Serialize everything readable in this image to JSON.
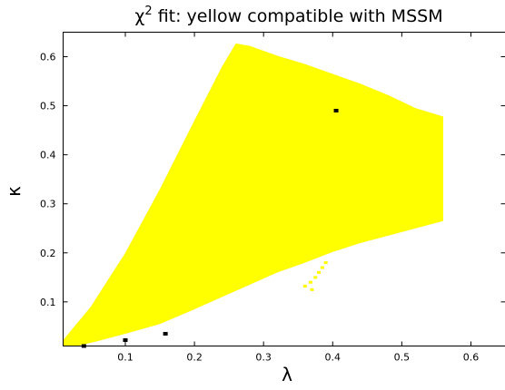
{
  "chart_data": {
    "type": "scatter",
    "title": "χ² fit: yellow compatible with MSSM",
    "title_base": "χ",
    "title_sup": "2",
    "title_rest": " fit: yellow compatible with MSSM",
    "xlabel": "λ",
    "ylabel": "κ",
    "xlim": [
      0.01,
      0.65
    ],
    "ylim": [
      0.01,
      0.65
    ],
    "xticks": [
      "0.1",
      "0.2",
      "0.3",
      "0.4",
      "0.5",
      "0.6"
    ],
    "xtick_values": [
      0.1,
      0.2,
      0.3,
      0.4,
      0.5,
      0.6
    ],
    "yticks": [
      "0.1",
      "0.2",
      "0.3",
      "0.4",
      "0.5",
      "0.6"
    ],
    "ytick_values": [
      0.1,
      0.2,
      0.3,
      0.4,
      0.5,
      0.6
    ],
    "grid": false,
    "fill_color": "#ffff00",
    "marker_color": "#000000",
    "region_boundary": [
      [
        0.01,
        0.01
      ],
      [
        0.01,
        0.022
      ],
      [
        0.05,
        0.09
      ],
      [
        0.1,
        0.2
      ],
      [
        0.15,
        0.33
      ],
      [
        0.2,
        0.47
      ],
      [
        0.24,
        0.58
      ],
      [
        0.26,
        0.627
      ],
      [
        0.28,
        0.622
      ],
      [
        0.32,
        0.602
      ],
      [
        0.36,
        0.585
      ],
      [
        0.4,
        0.565
      ],
      [
        0.44,
        0.545
      ],
      [
        0.48,
        0.522
      ],
      [
        0.52,
        0.495
      ],
      [
        0.56,
        0.478
      ],
      [
        0.56,
        0.265
      ],
      [
        0.52,
        0.25
      ],
      [
        0.48,
        0.235
      ],
      [
        0.44,
        0.22
      ],
      [
        0.4,
        0.202
      ],
      [
        0.36,
        0.18
      ],
      [
        0.32,
        0.16
      ],
      [
        0.28,
        0.135
      ],
      [
        0.24,
        0.11
      ],
      [
        0.2,
        0.085
      ],
      [
        0.15,
        0.055
      ],
      [
        0.1,
        0.035
      ],
      [
        0.06,
        0.02
      ],
      [
        0.03,
        0.01
      ]
    ],
    "scatter_points": [
      {
        "x": 0.39,
        "y": 0.18
      },
      {
        "x": 0.385,
        "y": 0.17
      },
      {
        "x": 0.38,
        "y": 0.16
      },
      {
        "x": 0.375,
        "y": 0.15
      },
      {
        "x": 0.368,
        "y": 0.14
      },
      {
        "x": 0.36,
        "y": 0.132
      },
      {
        "x": 0.37,
        "y": 0.125
      }
    ],
    "markers": [
      {
        "x": 0.405,
        "y": 0.49
      },
      {
        "x": 0.158,
        "y": 0.035
      },
      {
        "x": 0.1,
        "y": 0.022
      },
      {
        "x": 0.04,
        "y": 0.01
      }
    ]
  }
}
